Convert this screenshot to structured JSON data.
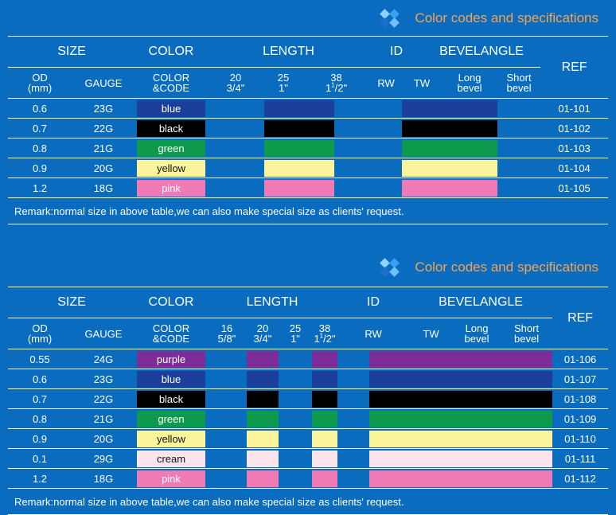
{
  "title": "Color codes and specifications",
  "headers": {
    "size": "SIZE",
    "color": "COLOR",
    "length": "LENGTH",
    "id": "ID",
    "bevelangle": "BEVELANGLE",
    "ref": "REF",
    "od": "OD",
    "od_unit": "(mm)",
    "gauge": "GAUGE",
    "color_code_1": "COLOR",
    "color_code_2": "&CODE",
    "rw": "RW",
    "tw": "TW",
    "long_1": "Long",
    "long_2": "bevel",
    "short_1": "Short",
    "short_2": "bevel"
  },
  "remark": "Remark:normal size in above table,we can also make special size as clients' request.",
  "colors": {
    "blue": "#1d3f9c",
    "black": "#000000",
    "green": "#0e9a4c",
    "yellow": "#fbf49a",
    "pink": "#f07ab6",
    "purple": "#7c2d98",
    "cream": "#fce4ec"
  },
  "table1": {
    "lengths": [
      {
        "top": "20",
        "bottom": "3/4\""
      },
      {
        "top": "25",
        "bottom": "1\""
      },
      {
        "top": "38",
        "bottom": "1",
        "sup": "1",
        "rest": "/2\""
      }
    ],
    "rows": [
      {
        "od": "0.6",
        "gauge": "23G",
        "color": "blue",
        "ref": "01-101"
      },
      {
        "od": "0.7",
        "gauge": "22G",
        "color": "black",
        "ref": "01-102"
      },
      {
        "od": "0.8",
        "gauge": "21G",
        "color": "green",
        "ref": "01-103"
      },
      {
        "od": "0.9",
        "gauge": "20G",
        "color": "yellow",
        "ref": "01-104"
      },
      {
        "od": "1.2",
        "gauge": "18G",
        "color": "pink",
        "ref": "01-105"
      }
    ]
  },
  "table2": {
    "lengths": [
      {
        "top": "16",
        "bottom": "5/8\""
      },
      {
        "top": "20",
        "bottom": "3/4\""
      },
      {
        "top": "25",
        "bottom": "1\""
      },
      {
        "top": "38",
        "bottom": "1",
        "sup": "1",
        "rest": "/2\""
      }
    ],
    "rows": [
      {
        "od": "0.55",
        "gauge": "24G",
        "color": "purple",
        "ref": "01-106"
      },
      {
        "od": "0.6",
        "gauge": "23G",
        "color": "blue",
        "ref": "01-107"
      },
      {
        "od": "0.7",
        "gauge": "22G",
        "color": "black",
        "ref": "01-108"
      },
      {
        "od": "0.8",
        "gauge": "21G",
        "color": "green",
        "ref": "01-109"
      },
      {
        "od": "0.9",
        "gauge": "20G",
        "color": "yellow",
        "ref": "01-110"
      },
      {
        "od": "0.1",
        "gauge": "29G",
        "color": "cream",
        "ref": "01-111"
      },
      {
        "od": "1.2",
        "gauge": "18G",
        "color": "pink",
        "ref": "01-112"
      }
    ]
  }
}
